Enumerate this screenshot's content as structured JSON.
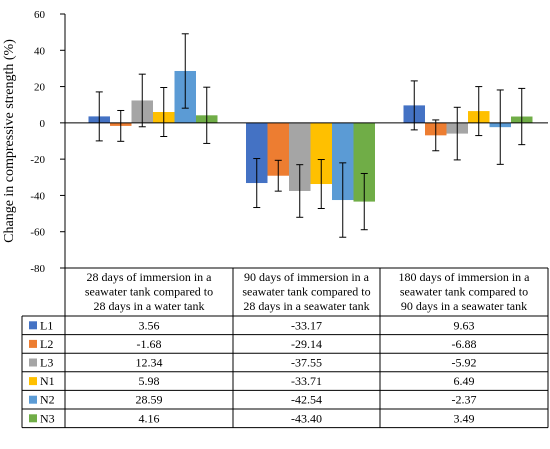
{
  "chart_data": {
    "type": "bar",
    "title": "",
    "xlabel": "",
    "ylabel": "Change in compressive strength (%)",
    "ylim": [
      -80,
      60
    ],
    "yticks": [
      -80,
      -60,
      -40,
      -20,
      0,
      20,
      40,
      60
    ],
    "grid": false,
    "legend": "data-table-rows",
    "categories": [
      "28 days of immersion in a seawater tank compared to 28 days in a water tank",
      "90 days of immersion in a seawater tank compared to 28 days in a seawater tank",
      "180 days of immersion in a seawater tank compared to 90 days in a seawater tank"
    ],
    "category_lines": [
      [
        "28 days of immersion in a",
        "seawater tank compared to",
        "28 days in a water tank"
      ],
      [
        "90 days of immersion in a",
        "seawater tank compared to",
        "28 days in a seawater tank"
      ],
      [
        "180 days of immersion in a",
        "seawater tank compared to",
        "90 days in a seawater tank"
      ]
    ],
    "series": [
      {
        "name": "L1",
        "color": "#4472c4",
        "values": [
          3.56,
          -33.17,
          9.63
        ],
        "value_labels": [
          "3.56",
          "-33.17",
          "9.63"
        ],
        "error": [
          13.5,
          13.5,
          13.5
        ]
      },
      {
        "name": "L2",
        "color": "#ed7d31",
        "values": [
          -1.68,
          -29.14,
          -6.88
        ],
        "value_labels": [
          "-1.68",
          "-29.14",
          "-6.88"
        ],
        "error": [
          8.5,
          8.5,
          8.5
        ]
      },
      {
        "name": "L3",
        "color": "#a5a5a5",
        "values": [
          12.34,
          -37.55,
          -5.92
        ],
        "value_labels": [
          "12.34",
          "-37.55",
          "-5.92"
        ],
        "error": [
          14.5,
          14.5,
          14.5
        ]
      },
      {
        "name": "N1",
        "color": "#ffc000",
        "values": [
          5.98,
          -33.71,
          6.49
        ],
        "value_labels": [
          "5.98",
          "-33.71",
          "6.49"
        ],
        "error": [
          13.5,
          13.5,
          13.5
        ]
      },
      {
        "name": "N2",
        "color": "#5b9bd5",
        "values": [
          28.59,
          -42.54,
          -2.37
        ],
        "value_labels": [
          "28.59",
          "-42.54",
          "-2.37"
        ],
        "error": [
          20.5,
          20.5,
          20.5
        ]
      },
      {
        "name": "N3",
        "color": "#70ad47",
        "values": [
          4.16,
          -43.4,
          3.49
        ],
        "value_labels": [
          "4.16",
          "-43.40",
          "3.49"
        ],
        "error": [
          15.5,
          15.5,
          15.5
        ]
      }
    ]
  }
}
